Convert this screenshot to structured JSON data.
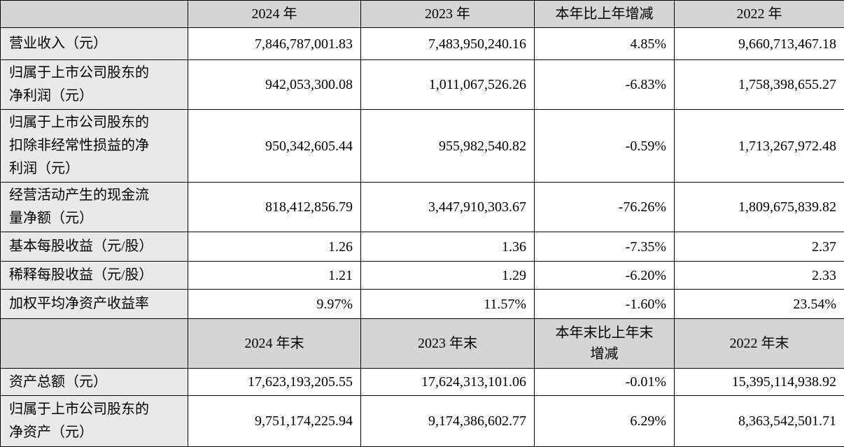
{
  "colors": {
    "border": "#000000",
    "header_bg": "#d5d5d5",
    "label_bg": "#e9e9e9",
    "cell_bg": "#ffffff"
  },
  "table": {
    "sections": [
      {
        "header": {
          "corner": "",
          "cols": [
            "2024 年",
            "2023 年",
            "本年比上年增减",
            "2022 年"
          ]
        },
        "rows": [
          {
            "label": "营业收入（元）",
            "values": [
              "7,846,787,001.83",
              "7,483,950,240.16",
              "4.85%",
              "9,660,713,467.18"
            ]
          },
          {
            "label": "归属于上市公司股东的\n净利润（元）",
            "values": [
              "942,053,300.08",
              "1,011,067,526.26",
              "-6.83%",
              "1,758,398,655.27"
            ]
          },
          {
            "label": "归属于上市公司股东的\n扣除非经常性损益的净\n利润（元）",
            "values": [
              "950,342,605.44",
              "955,982,540.82",
              "-0.59%",
              "1,713,267,972.48"
            ]
          },
          {
            "label": "经营活动产生的现金流\n量净额（元）",
            "values": [
              "818,412,856.79",
              "3,447,910,303.67",
              "-76.26%",
              "1,809,675,839.82"
            ]
          },
          {
            "label": "基本每股收益（元/股）",
            "values": [
              "1.26",
              "1.36",
              "-7.35%",
              "2.37"
            ]
          },
          {
            "label": "稀释每股收益（元/股）",
            "values": [
              "1.21",
              "1.29",
              "-6.20%",
              "2.33"
            ]
          },
          {
            "label": "加权平均净资产收益率",
            "values": [
              "9.97%",
              "11.57%",
              "-1.60%",
              "23.54%"
            ]
          }
        ]
      },
      {
        "header": {
          "corner": "",
          "cols": [
            "2024 年末",
            "2023 年末",
            "本年末比上年末\n增减",
            "2022 年末"
          ]
        },
        "rows": [
          {
            "label": "资产总额（元）",
            "values": [
              "17,623,193,205.55",
              "17,624,313,101.06",
              "-0.01%",
              "15,395,114,938.92"
            ]
          },
          {
            "label": "归属于上市公司股东的\n净资产（元）",
            "values": [
              "9,751,174,225.94",
              "9,174,386,602.77",
              "6.29%",
              "8,363,542,501.71"
            ]
          }
        ]
      }
    ]
  }
}
